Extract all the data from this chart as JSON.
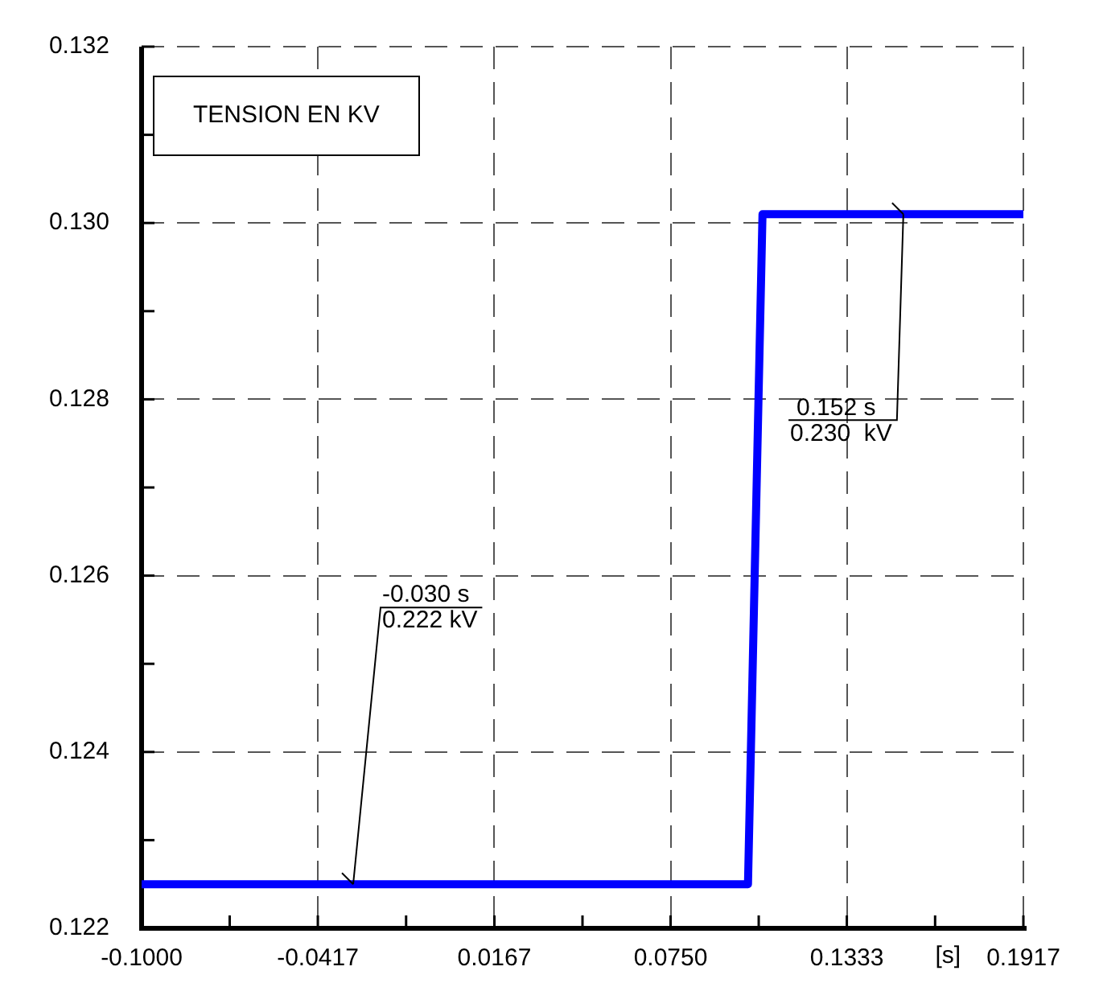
{
  "chart_data": {
    "type": "step",
    "title": "TENSION EN KV",
    "xlabel": "[s]",
    "x": [
      -0.1,
      0.1006,
      0.1054,
      0.1917
    ],
    "series": [
      {
        "color": "#0000ff",
        "values": [
          0.1225,
          0.1225,
          0.1301,
          0.1301
        ]
      }
    ],
    "xlim": [
      -0.1,
      0.1917
    ],
    "xticks": [
      {
        "value": -0.1,
        "label": "-0.1000"
      },
      {
        "value": -0.07085,
        "label": null
      },
      {
        "value": -0.0417,
        "label": "-0.0417"
      },
      {
        "value": -0.0125,
        "label": null
      },
      {
        "value": 0.0167,
        "label": "0.0167"
      },
      {
        "value": 0.04585,
        "label": null
      },
      {
        "value": 0.075,
        "label": "0.0750"
      },
      {
        "value": 0.10415,
        "label": null
      },
      {
        "value": 0.1333,
        "label": "0.1333"
      },
      {
        "value": 0.1625,
        "label": null
      },
      {
        "value": 0.1917,
        "label": "0.1917"
      }
    ],
    "ylim": [
      0.122,
      0.132
    ],
    "yticks": [
      {
        "value": 0.122,
        "label": "0.122"
      },
      {
        "value": 0.123,
        "label": null
      },
      {
        "value": 0.124,
        "label": "0.124"
      },
      {
        "value": 0.125,
        "label": null
      },
      {
        "value": 0.126,
        "label": "0.126"
      },
      {
        "value": 0.127,
        "label": null
      },
      {
        "value": 0.128,
        "label": "0.128"
      },
      {
        "value": 0.129,
        "label": null
      },
      {
        "value": 0.13,
        "label": "0.130"
      },
      {
        "value": 0.131,
        "label": null
      },
      {
        "value": 0.132,
        "label": "0.132"
      }
    ],
    "grid": true,
    "legend": false,
    "marker": "none",
    "line_style": "solid",
    "annotations": [
      {
        "text": "-0.030 s\n0.222 kV",
        "x": -0.03,
        "y": 0.1225
      },
      {
        "text": "0.152 s\n0.230  kV",
        "x": 0.152,
        "y": 0.1301
      }
    ]
  }
}
